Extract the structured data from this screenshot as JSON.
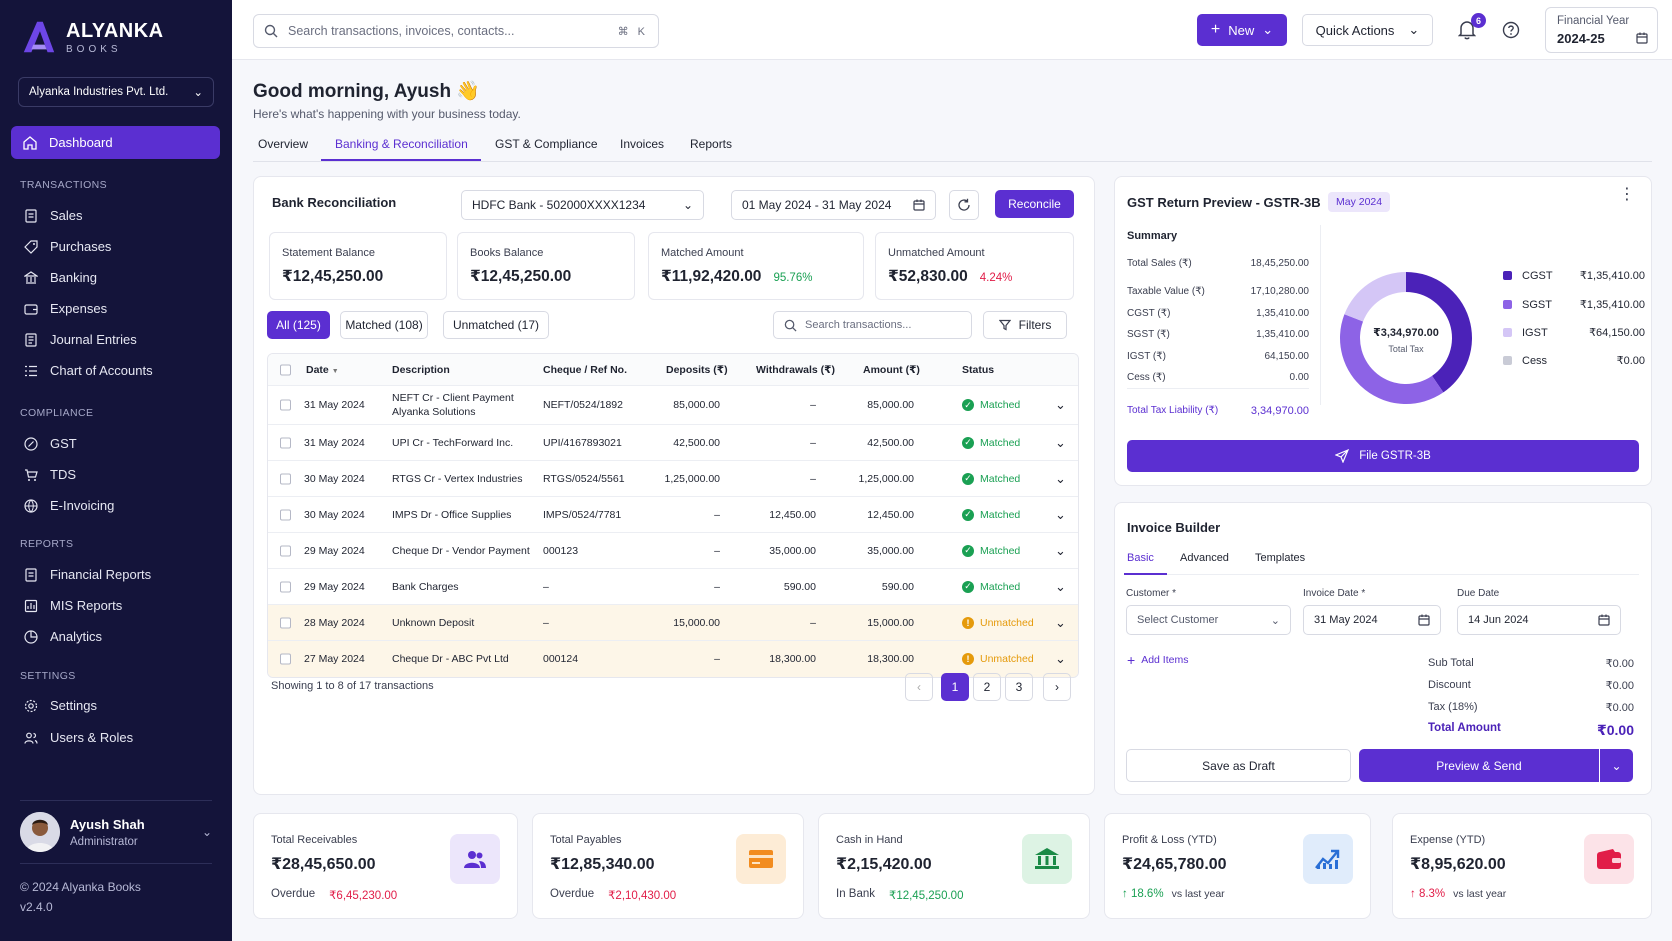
{
  "brand": {
    "name": "ALYANKA",
    "sub": "BOOKS"
  },
  "company": "Alyanka Industries Pvt. Ltd.",
  "nav": {
    "dashboard": "Dashboard",
    "transactions_title": "TRANSACTIONS",
    "transactions": [
      "Sales",
      "Purchases",
      "Banking",
      "Expenses",
      "Journal Entries",
      "Chart of Accounts"
    ],
    "compliance_title": "COMPLIANCE",
    "compliance": [
      "GST",
      "TDS",
      "E-Invoicing"
    ],
    "reports_title": "REPORTS",
    "reports": [
      "Financial Reports",
      "MIS Reports",
      "Analytics"
    ],
    "settings_title": "SETTINGS",
    "settings": [
      "Settings",
      "Users & Roles"
    ]
  },
  "user": {
    "name": "Ayush Shah",
    "role": "Administrator"
  },
  "footer": {
    "copyright": "© 2024 Alyanka Books",
    "version": "v2.4.0"
  },
  "topbar": {
    "search_placeholder": "Search transactions, invoices, contacts...",
    "kbd": "⌘ K",
    "new_label": "New",
    "quick_actions": "Quick Actions",
    "notifications": "6",
    "fy_label": "Financial Year",
    "fy_value": "2024-25"
  },
  "header": {
    "greeting": "Good morning, Ayush 👋",
    "sub": "Here's what's happening with your business today.",
    "tabs": [
      "Overview",
      "Banking & Reconciliation",
      "GST & Compliance",
      "Invoices",
      "Reports"
    ]
  },
  "reco": {
    "title": "Bank Reconciliation",
    "bank": "HDFC Bank - 502000XXXX1234",
    "range": "01 May 2024 - 31 May 2024",
    "reconcile": "Reconcile",
    "stats": [
      {
        "label": "Statement Balance",
        "value": "₹12,45,250.00",
        "pct": ""
      },
      {
        "label": "Books Balance",
        "value": "₹12,45,250.00",
        "pct": ""
      },
      {
        "label": "Matched Amount",
        "value": "₹11,92,420.00",
        "pct": "95.76%"
      },
      {
        "label": "Unmatched Amount",
        "value": "₹52,830.00",
        "pct": "4.24%"
      }
    ],
    "chips": [
      "All (125)",
      "Matched (108)",
      "Unmatched (17)"
    ],
    "search_placeholder": "Search transactions...",
    "filters": "Filters",
    "columns": [
      "Date",
      "Description",
      "Cheque / Ref No.",
      "Deposits (₹)",
      "Withdrawals (₹)",
      "Amount (₹)",
      "Status"
    ],
    "rows": [
      {
        "date": "31 May 2024",
        "desc": "NEFT Cr - Client Payment",
        "desc2": "Alyanka Solutions",
        "ref": "NEFT/0524/1892",
        "dep": "85,000.00",
        "wd": "–",
        "amt": "85,000.00",
        "status": "Matched"
      },
      {
        "date": "31 May 2024",
        "desc": "UPI Cr - TechForward Inc.",
        "desc2": "",
        "ref": "UPI/4167893021",
        "dep": "42,500.00",
        "wd": "–",
        "amt": "42,500.00",
        "status": "Matched"
      },
      {
        "date": "30 May 2024",
        "desc": "RTGS Cr - Vertex Industries",
        "desc2": "",
        "ref": "RTGS/0524/5561",
        "dep": "1,25,000.00",
        "wd": "–",
        "amt": "1,25,000.00",
        "status": "Matched"
      },
      {
        "date": "30 May 2024",
        "desc": "IMPS Dr - Office Supplies",
        "desc2": "",
        "ref": "IMPS/0524/7781",
        "dep": "–",
        "wd": "12,450.00",
        "amt": "12,450.00",
        "status": "Matched"
      },
      {
        "date": "29 May 2024",
        "desc": "Cheque Dr - Vendor Payment",
        "desc2": "",
        "ref": "000123",
        "dep": "–",
        "wd": "35,000.00",
        "amt": "35,000.00",
        "status": "Matched"
      },
      {
        "date": "29 May 2024",
        "desc": "Bank Charges",
        "desc2": "",
        "ref": "–",
        "dep": "–",
        "wd": "590.00",
        "amt": "590.00",
        "status": "Matched"
      },
      {
        "date": "28 May 2024",
        "desc": "Unknown Deposit",
        "desc2": "",
        "ref": "–",
        "dep": "15,000.00",
        "wd": "–",
        "amt": "15,000.00",
        "status": "Unmatched"
      },
      {
        "date": "27 May 2024",
        "desc": "Cheque Dr - ABC Pvt Ltd",
        "desc2": "",
        "ref": "000124",
        "dep": "–",
        "wd": "18,300.00",
        "amt": "18,300.00",
        "status": "Unmatched"
      }
    ],
    "showing": "Showing 1 to 8 of 17 transactions",
    "pages": [
      "1",
      "2",
      "3"
    ]
  },
  "gst": {
    "title": "GST Return Preview - GSTR-3B",
    "period": "May 2024",
    "summary_title": "Summary",
    "summary": [
      {
        "label": "Total Sales (₹)",
        "value": "18,45,250.00"
      },
      {
        "label": "Taxable Value (₹)",
        "value": "17,10,280.00"
      },
      {
        "label": "CGST (₹)",
        "value": "1,35,410.00"
      },
      {
        "label": "SGST (₹)",
        "value": "1,35,410.00"
      },
      {
        "label": "IGST (₹)",
        "value": "64,150.00"
      },
      {
        "label": "Cess (₹)",
        "value": "0.00"
      }
    ],
    "liability_label": "Total Tax Liability (₹)",
    "liability_value": "3,34,970.00",
    "donut_value": "₹3,34,970.00",
    "donut_label": "Total Tax",
    "legend": [
      {
        "name": "CGST",
        "value": "₹1,35,410.00",
        "amount": 135410,
        "color": "#4b22b8"
      },
      {
        "name": "SGST",
        "value": "₹1,35,410.00",
        "amount": 135410,
        "color": "#8d63e6"
      },
      {
        "name": "IGST",
        "value": "₹64,150.00",
        "amount": 64150,
        "color": "#d4c6f6"
      },
      {
        "name": "Cess",
        "value": "₹0.00",
        "amount": 0,
        "color": "#c9cbd6"
      }
    ],
    "file_button": "File GSTR-3B"
  },
  "invoice": {
    "title": "Invoice Builder",
    "tabs": [
      "Basic",
      "Advanced",
      "Templates"
    ],
    "customer_label": "Customer *",
    "customer_placeholder": "Select Customer",
    "invoice_date_label": "Invoice Date *",
    "invoice_date": "31 May 2024",
    "due_date_label": "Due Date",
    "due_date": "14 Jun 2024",
    "add_items": "Add Items",
    "totals": [
      {
        "label": "Sub Total",
        "value": "₹0.00"
      },
      {
        "label": "Discount",
        "value": "₹0.00"
      },
      {
        "label": "Tax (18%)",
        "value": "₹0.00"
      }
    ],
    "total_label": "Total Amount",
    "total_value": "₹0.00",
    "save_draft": "Save as Draft",
    "preview_send": "Preview & Send"
  },
  "kpis": [
    {
      "label": "Total Receivables",
      "value": "₹28,45,650.00",
      "sub_label": "Overdue",
      "sub_value": "₹6,45,230.00",
      "icon": "users-icon"
    },
    {
      "label": "Total Payables",
      "value": "₹12,85,340.00",
      "sub_label": "Overdue",
      "sub_value": "₹2,10,430.00",
      "icon": "card-icon"
    },
    {
      "label": "Cash in Hand",
      "value": "₹2,15,420.00",
      "sub_label": "In Bank",
      "sub_value": "₹12,45,250.00",
      "icon": "bank-icon"
    },
    {
      "label": "Profit & Loss (YTD)",
      "value": "₹24,65,780.00",
      "sub_label": "↑ 18.6%",
      "sub_value": "vs last year",
      "icon": "chart-up-icon"
    },
    {
      "label": "Expense (YTD)",
      "value": "₹8,95,620.00",
      "sub_label": "↑ 8.3%",
      "sub_value": "vs last year",
      "icon": "wallet-icon"
    }
  ],
  "colors": {
    "accent": "#5b2fd1",
    "sidebar": "#14143a",
    "matched": "#1aa053",
    "unmatched": "#e59a0b",
    "negative": "#e11d48"
  }
}
